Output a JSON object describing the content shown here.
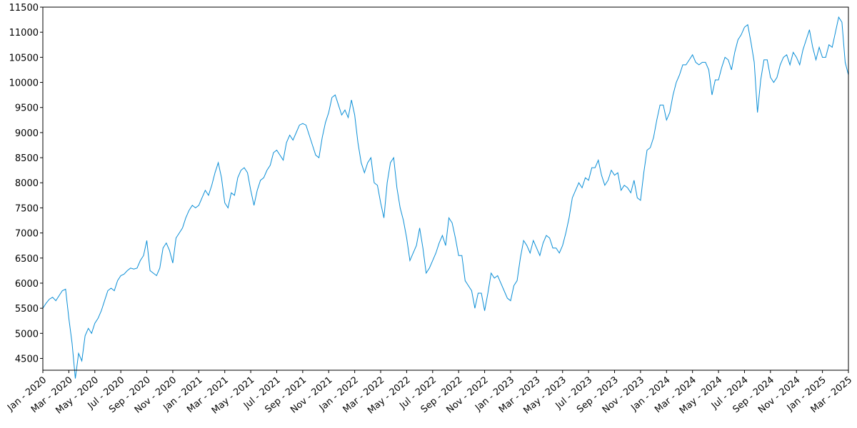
{
  "chart_data": {
    "type": "line",
    "color": "#0a8ed6",
    "xlim": [
      0,
      62
    ],
    "ylim": [
      4265,
      11500
    ],
    "yticks": [
      4500,
      5000,
      5500,
      6000,
      6500,
      7000,
      7500,
      8000,
      8500,
      9000,
      9500,
      10000,
      10500,
      11000,
      11500
    ],
    "xticks": [
      {
        "value": 0,
        "label": "Jan - 2020"
      },
      {
        "value": 2,
        "label": "Mar - 2020"
      },
      {
        "value": 4,
        "label": "May - 2020"
      },
      {
        "value": 6,
        "label": "Jul - 2020"
      },
      {
        "value": 8,
        "label": "Sep - 2020"
      },
      {
        "value": 10,
        "label": "Nov - 2020"
      },
      {
        "value": 12,
        "label": "Jan - 2021"
      },
      {
        "value": 14,
        "label": "Mar - 2021"
      },
      {
        "value": 16,
        "label": "May - 2021"
      },
      {
        "value": 18,
        "label": "Jul - 2021"
      },
      {
        "value": 20,
        "label": "Sep - 2021"
      },
      {
        "value": 22,
        "label": "Nov - 2021"
      },
      {
        "value": 24,
        "label": "Jan - 2022"
      },
      {
        "value": 26,
        "label": "Mar - 2022"
      },
      {
        "value": 28,
        "label": "May - 2022"
      },
      {
        "value": 30,
        "label": "Jul - 2022"
      },
      {
        "value": 32,
        "label": "Sep - 2022"
      },
      {
        "value": 34,
        "label": "Nov - 2022"
      },
      {
        "value": 36,
        "label": "Jan - 2023"
      },
      {
        "value": 38,
        "label": "Mar - 2023"
      },
      {
        "value": 40,
        "label": "May - 2023"
      },
      {
        "value": 42,
        "label": "Jul - 2023"
      },
      {
        "value": 44,
        "label": "Sep - 2023"
      },
      {
        "value": 46,
        "label": "Nov - 2023"
      },
      {
        "value": 48,
        "label": "Jan - 2024"
      },
      {
        "value": 50,
        "label": "Mar - 2024"
      },
      {
        "value": 52,
        "label": "May - 2024"
      },
      {
        "value": 54,
        "label": "Jul - 2024"
      },
      {
        "value": 56,
        "label": "Sep - 2024"
      },
      {
        "value": 58,
        "label": "Nov - 2024"
      },
      {
        "value": 60,
        "label": "Jan - 2025"
      },
      {
        "value": 62,
        "label": "Mar - 2025"
      }
    ],
    "x": [
      0,
      0.25,
      0.5,
      0.75,
      1,
      1.25,
      1.5,
      1.75,
      2,
      2.25,
      2.5,
      2.75,
      3,
      3.25,
      3.5,
      3.75,
      4,
      4.25,
      4.5,
      4.75,
      5,
      5.25,
      5.5,
      5.75,
      6,
      6.25,
      6.5,
      6.75,
      7,
      7.25,
      7.5,
      7.75,
      8,
      8.25,
      8.5,
      8.75,
      9,
      9.25,
      9.5,
      9.75,
      10,
      10.25,
      10.5,
      10.75,
      11,
      11.25,
      11.5,
      11.75,
      12,
      12.25,
      12.5,
      12.75,
      13,
      13.25,
      13.5,
      13.75,
      14,
      14.25,
      14.5,
      14.75,
      15,
      15.25,
      15.5,
      15.75,
      16,
      16.25,
      16.5,
      16.75,
      17,
      17.25,
      17.5,
      17.75,
      18,
      18.25,
      18.5,
      18.75,
      19,
      19.25,
      19.5,
      19.75,
      20,
      20.25,
      20.5,
      20.75,
      21,
      21.25,
      21.5,
      21.75,
      22,
      22.25,
      22.5,
      22.75,
      23,
      23.25,
      23.5,
      23.75,
      24,
      24.25,
      24.5,
      24.75,
      25,
      25.25,
      25.5,
      25.75,
      26,
      26.25,
      26.5,
      26.75,
      27,
      27.25,
      27.5,
      27.75,
      28,
      28.25,
      28.5,
      28.75,
      29,
      29.25,
      29.5,
      29.75,
      30,
      30.25,
      30.5,
      30.75,
      31,
      31.25,
      31.5,
      31.75,
      32,
      32.25,
      32.5,
      32.75,
      33,
      33.25,
      33.5,
      33.75,
      34,
      34.25,
      34.5,
      34.75,
      35,
      35.25,
      35.5,
      35.75,
      36,
      36.25,
      36.5,
      36.75,
      37,
      37.25,
      37.5,
      37.75,
      38,
      38.25,
      38.5,
      38.75,
      39,
      39.25,
      39.5,
      39.75,
      40,
      40.25,
      40.5,
      40.75,
      41,
      41.25,
      41.5,
      41.75,
      42,
      42.25,
      42.5,
      42.75,
      43,
      43.25,
      43.5,
      43.75,
      44,
      44.25,
      44.5,
      44.75,
      45,
      45.25,
      45.5,
      45.75,
      46,
      46.25,
      46.5,
      46.75,
      47,
      47.25,
      47.5,
      47.75,
      48,
      48.25,
      48.5,
      48.75,
      49,
      49.25,
      49.5,
      49.75,
      50,
      50.25,
      50.5,
      50.75,
      51,
      51.25,
      51.5,
      51.75,
      52,
      52.25,
      52.5,
      52.75,
      53,
      53.25,
      53.5,
      53.75,
      54,
      54.25,
      54.5,
      54.75,
      55,
      55.25,
      55.5,
      55.75,
      56,
      56.25,
      56.5,
      56.75,
      57,
      57.25,
      57.5,
      57.75,
      58,
      58.25,
      58.5,
      58.75,
      59,
      59.25,
      59.5,
      59.75,
      60,
      60.25,
      60.5,
      60.75,
      61,
      61.25,
      61.5,
      61.75,
      62
    ],
    "values": [
      5500,
      5600,
      5680,
      5720,
      5650,
      5750,
      5850,
      5880,
      5300,
      4800,
      4100,
      4600,
      4450,
      4950,
      5100,
      5000,
      5200,
      5300,
      5450,
      5650,
      5850,
      5900,
      5850,
      6050,
      6150,
      6180,
      6250,
      6300,
      6280,
      6300,
      6450,
      6550,
      6850,
      6250,
      6200,
      6150,
      6300,
      6700,
      6800,
      6650,
      6400,
      6900,
      7000,
      7100,
      7300,
      7450,
      7550,
      7500,
      7550,
      7700,
      7850,
      7750,
      7950,
      8200,
      8400,
      8100,
      7600,
      7500,
      7800,
      7750,
      8100,
      8250,
      8300,
      8200,
      7850,
      7550,
      7850,
      8050,
      8100,
      8250,
      8350,
      8600,
      8650,
      8550,
      8450,
      8800,
      8950,
      8850,
      9000,
      9150,
      9180,
      9150,
      8950,
      8750,
      8550,
      8500,
      8900,
      9200,
      9400,
      9700,
      9750,
      9550,
      9350,
      9450,
      9300,
      9650,
      9350,
      8800,
      8400,
      8200,
      8400,
      8500,
      8000,
      7950,
      7600,
      7300,
      8000,
      8400,
      8500,
      7900,
      7500,
      7250,
      6900,
      6450,
      6600,
      6750,
      7100,
      6700,
      6200,
      6300,
      6450,
      6600,
      6800,
      6950,
      6750,
      7300,
      7200,
      6900,
      6550,
      6550,
      6050,
      5950,
      5850,
      5500,
      5800,
      5800,
      5450,
      5800,
      6200,
      6100,
      6150,
      6000,
      5850,
      5700,
      5650,
      5950,
      6050,
      6500,
      6850,
      6750,
      6600,
      6850,
      6700,
      6550,
      6800,
      6950,
      6900,
      6700,
      6700,
      6600,
      6750,
      7000,
      7300,
      7700,
      7850,
      8000,
      7900,
      8100,
      8050,
      8300,
      8300,
      8450,
      8150,
      7950,
      8050,
      8250,
      8150,
      8200,
      7850,
      7950,
      7900,
      7800,
      8050,
      7700,
      7650,
      8200,
      8650,
      8700,
      8900,
      9250,
      9550,
      9550,
      9250,
      9400,
      9750,
      10000,
      10150,
      10350,
      10350,
      10450,
      10550,
      10400,
      10350,
      10400,
      10400,
      10250,
      9750,
      10050,
      10050,
      10300,
      10500,
      10450,
      10250,
      10600,
      10850,
      10950,
      11100,
      11150,
      10800,
      10400,
      9400,
      10050,
      10450,
      10450,
      10100,
      10000,
      10100,
      10350,
      10500,
      10550,
      10350,
      10600,
      10500,
      10350,
      10650,
      10850,
      11050,
      10700,
      10450,
      10700,
      10500,
      10500,
      10750,
      10700,
      11000,
      11300,
      11200,
      10400,
      10150
    ]
  }
}
